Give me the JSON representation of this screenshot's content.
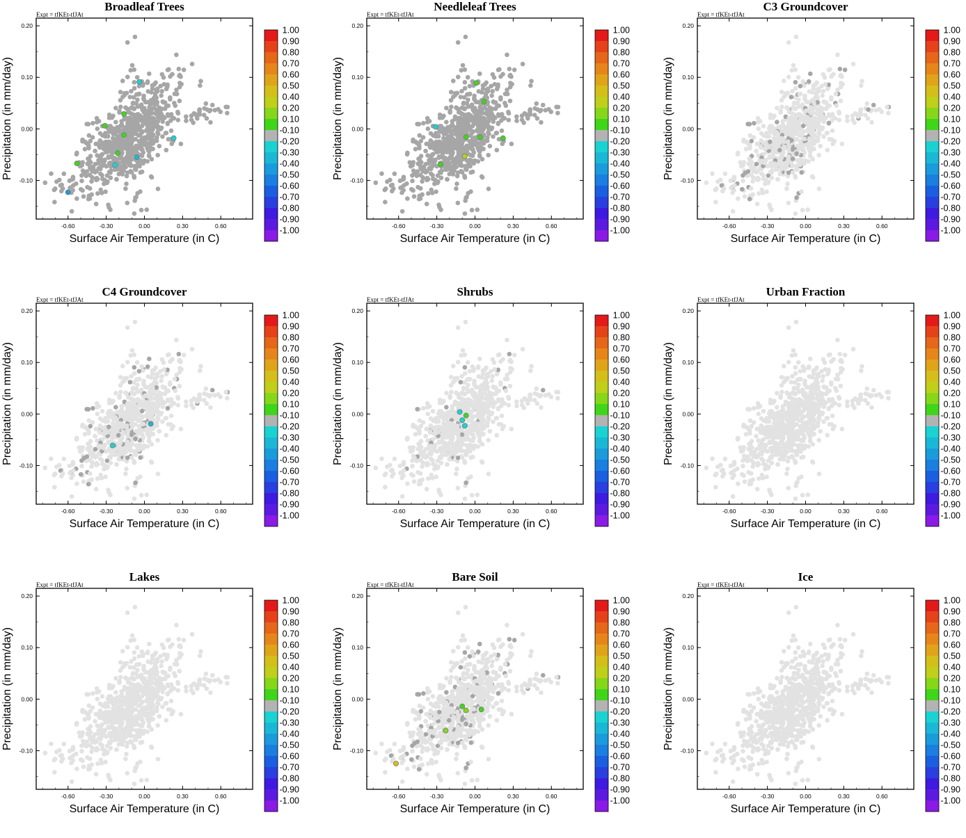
{
  "colors": {
    "grey_scatter": "#a6a6a6",
    "light_scatter": "#e2e2e2",
    "frame": "#000000",
    "neutral_bin": "#b3b3b3"
  },
  "colorbar": {
    "labels": [
      "1.00",
      "0.90",
      "0.80",
      "0.70",
      "0.60",
      "0.50",
      "0.40",
      "0.20",
      "0.10",
      "-0.10",
      "-0.20",
      "-0.30",
      "-0.40",
      "-0.50",
      "-0.60",
      "-0.70",
      "-0.80",
      "-0.90",
      "-1.00"
    ],
    "colors": [
      "#e41a1a",
      "#e6421a",
      "#e6661a",
      "#e6861a",
      "#e0a41a",
      "#d4bf1a",
      "#bfcf1a",
      "#86d61a",
      "#3fd61a",
      "#b3b3b3",
      "#1ad2d2",
      "#1ab8d6",
      "#1a9bdc",
      "#1a7fe0",
      "#1a5fe0",
      "#2a3fe0",
      "#3f1ae0",
      "#5c1ae0",
      "#8a1ae6"
    ]
  },
  "chart_data": [
    {
      "type": "scatter",
      "title": "Broadleaf Trees",
      "annotation": "Expt = tfKEt-tfJAt",
      "xlabel": "Surface Air Temperature (in C)",
      "ylabel": "Precipitation (in mm/day)",
      "xlim": [
        -0.85,
        0.85
      ],
      "ylim": [
        -0.175,
        0.215
      ],
      "xticks": [
        "-0.60",
        "-0.30",
        "0.00",
        "0.30",
        "0.60"
      ],
      "yticks": [
        "0.20",
        "0.10",
        "0.00",
        "-0.10"
      ],
      "grey_fraction": 1.0,
      "highlights": [
        {
          "x": -0.31,
          "y": 0.006,
          "c": "#3fd61a"
        },
        {
          "x": -0.16,
          "y": 0.029,
          "c": "#3fd61a"
        },
        {
          "x": -0.16,
          "y": -0.012,
          "c": "#3fd61a"
        },
        {
          "x": -0.21,
          "y": -0.047,
          "c": "#3fd61a"
        },
        {
          "x": -0.53,
          "y": -0.067,
          "c": "#3fd61a"
        },
        {
          "x": -0.04,
          "y": 0.091,
          "c": "#1ad2d2"
        },
        {
          "x": 0.23,
          "y": -0.018,
          "c": "#1ad2d2"
        },
        {
          "x": -0.23,
          "y": -0.07,
          "c": "#1ad2d2"
        },
        {
          "x": -0.06,
          "y": -0.055,
          "c": "#1ab8d6"
        },
        {
          "x": -0.6,
          "y": -0.123,
          "c": "#1a9bdc"
        }
      ]
    },
    {
      "type": "scatter",
      "title": "Needleleaf Trees",
      "annotation": "Expt = tfKEt-tfJAt",
      "xlabel": "Surface Air Temperature (in C)",
      "ylabel": "Precipitation (in mm/day)",
      "xlim": [
        -0.85,
        0.85
      ],
      "ylim": [
        -0.175,
        0.215
      ],
      "xticks": [
        "-0.60",
        "-0.30",
        "0.00",
        "0.30",
        "0.60"
      ],
      "yticks": [
        "0.20",
        "0.10",
        "0.00",
        "-0.10"
      ],
      "grey_fraction": 1.0,
      "highlights": [
        {
          "x": 0.01,
          "y": 0.089,
          "c": "#3fd61a"
        },
        {
          "x": 0.07,
          "y": 0.053,
          "c": "#3fd61a"
        },
        {
          "x": -0.07,
          "y": -0.016,
          "c": "#3fd61a"
        },
        {
          "x": 0.04,
          "y": -0.016,
          "c": "#3fd61a"
        },
        {
          "x": 0.22,
          "y": -0.018,
          "c": "#3fd61a"
        },
        {
          "x": -0.27,
          "y": -0.069,
          "c": "#3fd61a"
        },
        {
          "x": -0.08,
          "y": -0.053,
          "c": "#bfcf1a"
        },
        {
          "x": -0.31,
          "y": 0.004,
          "c": "#1ad2d2"
        }
      ]
    },
    {
      "type": "scatter",
      "title": "C3 Groundcover",
      "annotation": "Expt = tfKEt-tfJAt",
      "xlabel": "Surface Air Temperature (in C)",
      "ylabel": "Precipitation (in mm/day)",
      "xlim": [
        -0.85,
        0.85
      ],
      "ylim": [
        -0.175,
        0.215
      ],
      "xticks": [
        "-0.60",
        "-0.30",
        "0.00",
        "0.30",
        "0.60"
      ],
      "yticks": [
        "0.20",
        "0.10",
        "0.00",
        "-0.10"
      ],
      "grey_fraction": 0.13,
      "highlights": []
    },
    {
      "type": "scatter",
      "title": "C4 Groundcover",
      "annotation": "Expt = tfKEt-tfJAt",
      "xlabel": "Surface Air Temperature (in C)",
      "ylabel": "Precipitation (in mm/day)",
      "xlim": [
        -0.85,
        0.85
      ],
      "ylim": [
        -0.175,
        0.215
      ],
      "xticks": [
        "-0.60",
        "-0.30",
        "0.00",
        "0.30",
        "0.60"
      ],
      "yticks": [
        "0.20",
        "0.10",
        "0.00",
        "-0.10"
      ],
      "grey_fraction": 0.11,
      "highlights": [
        {
          "x": 0.05,
          "y": -0.019,
          "c": "#1ab8d6"
        },
        {
          "x": -0.25,
          "y": -0.061,
          "c": "#1ad2d2"
        }
      ]
    },
    {
      "type": "scatter",
      "title": "Shrubs",
      "annotation": "Expt = tfKEt-tfJAt",
      "xlabel": "Surface Air Temperature (in C)",
      "ylabel": "Precipitation (in mm/day)",
      "xlim": [
        -0.85,
        0.85
      ],
      "ylim": [
        -0.175,
        0.215
      ],
      "xticks": [
        "-0.60",
        "-0.30",
        "0.00",
        "0.30",
        "0.60"
      ],
      "yticks": [
        "0.20",
        "0.10",
        "0.00",
        "-0.10"
      ],
      "grey_fraction": 0.04,
      "highlights": [
        {
          "x": -0.12,
          "y": 0.004,
          "c": "#1ad2d2"
        },
        {
          "x": -0.1,
          "y": -0.012,
          "c": "#1ad2d2"
        },
        {
          "x": -0.08,
          "y": -0.023,
          "c": "#1ad2d2"
        },
        {
          "x": -0.07,
          "y": -0.003,
          "c": "#3fd61a"
        }
      ]
    },
    {
      "type": "scatter",
      "title": "Urban Fraction",
      "annotation": "Expt = tfKEt-tfJAt",
      "xlabel": "Surface Air Temperature (in C)",
      "ylabel": "Precipitation (in mm/day)",
      "xlim": [
        -0.85,
        0.85
      ],
      "ylim": [
        -0.175,
        0.215
      ],
      "xticks": [
        "-0.60",
        "-0.30",
        "0.00",
        "0.30",
        "0.60"
      ],
      "yticks": [
        "0.20",
        "0.10",
        "0.00",
        "-0.10"
      ],
      "grey_fraction": 0.0,
      "highlights": []
    },
    {
      "type": "scatter",
      "title": "Lakes",
      "annotation": "Expt = tfKEt-tfJAt",
      "xlabel": "Surface Air Temperature (in C)",
      "ylabel": "Precipitation (in mm/day)",
      "xlim": [
        -0.85,
        0.85
      ],
      "ylim": [
        -0.175,
        0.215
      ],
      "xticks": [
        "-0.60",
        "-0.30",
        "0.00",
        "0.30",
        "0.60"
      ],
      "yticks": [
        "0.20",
        "0.10",
        "0.00",
        "-0.10"
      ],
      "grey_fraction": 0.0,
      "highlights": []
    },
    {
      "type": "scatter",
      "title": "Bare Soil",
      "annotation": "Expt = tfKEt-tfJAt",
      "xlabel": "Surface Air Temperature (in C)",
      "ylabel": "Precipitation (in mm/day)",
      "xlim": [
        -0.85,
        0.85
      ],
      "ylim": [
        -0.175,
        0.215
      ],
      "xticks": [
        "-0.60",
        "-0.30",
        "0.00",
        "0.30",
        "0.60"
      ],
      "yticks": [
        "0.20",
        "0.10",
        "0.00",
        "-0.10"
      ],
      "grey_fraction": 0.12,
      "highlights": [
        {
          "x": -0.1,
          "y": -0.014,
          "c": "#3fd61a"
        },
        {
          "x": -0.07,
          "y": -0.022,
          "c": "#86d61a"
        },
        {
          "x": 0.05,
          "y": -0.02,
          "c": "#3fd61a"
        },
        {
          "x": -0.23,
          "y": -0.061,
          "c": "#86d61a"
        },
        {
          "x": -0.62,
          "y": -0.125,
          "c": "#d4bf1a"
        }
      ]
    },
    {
      "type": "scatter",
      "title": "Ice",
      "annotation": "Expt = tfKEt-tfJAt",
      "xlabel": "Surface Air Temperature (in C)",
      "ylabel": "Precipitation (in mm/day)",
      "xlim": [
        -0.85,
        0.85
      ],
      "ylim": [
        -0.175,
        0.215
      ],
      "xticks": [
        "-0.60",
        "-0.30",
        "0.00",
        "0.30",
        "0.60"
      ],
      "yticks": [
        "0.20",
        "0.10",
        "0.00",
        "-0.10"
      ],
      "grey_fraction": 0.0,
      "highlights": []
    }
  ]
}
